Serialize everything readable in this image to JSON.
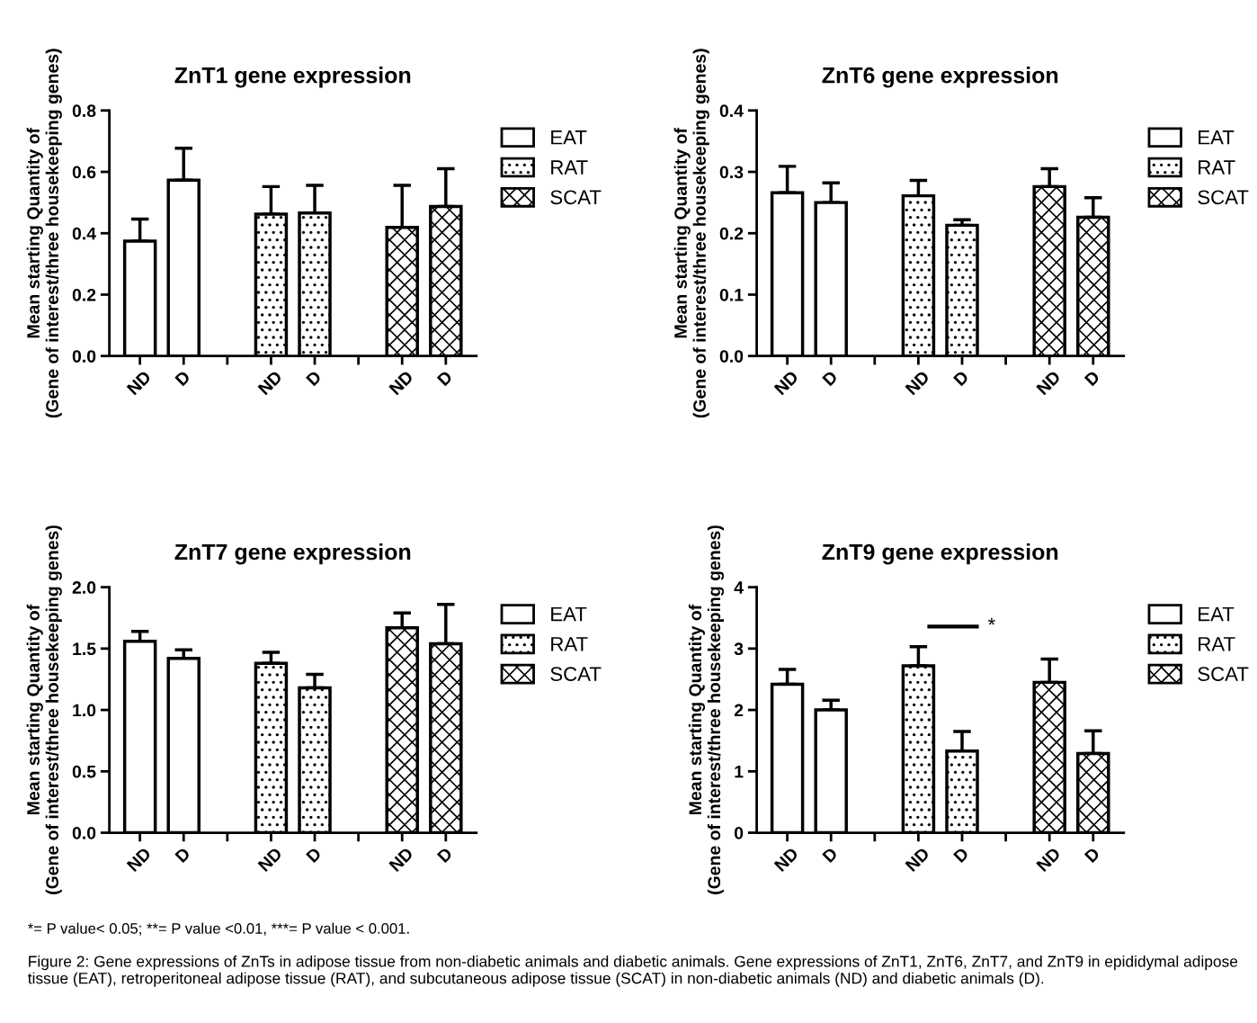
{
  "chart_data": [
    {
      "type": "bar",
      "title": "ZnT1 gene expression",
      "ylabel": "Mean starting Quantity of\n(Gene of interest/three housekeeping genes)",
      "categories": [
        "ND",
        "D",
        null,
        "ND",
        "D",
        null,
        "ND",
        "D"
      ],
      "ylim": [
        0,
        0.8
      ],
      "yticks": [
        {
          "value": 0,
          "label": "0.0"
        },
        0.2,
        0.4,
        0.6,
        0.8
      ],
      "legend": "top right",
      "series": [
        {
          "name": "EAT",
          "color": "#ffffff",
          "values": [
            0.374,
            0.573,
            null,
            null,
            null,
            null,
            null,
            null
          ],
          "errors": [
            [
              0.374,
              0.446
            ],
            [
              0.573,
              0.677
            ],
            null,
            null,
            null,
            null,
            null,
            null
          ]
        },
        {
          "name": "RAT",
          "color": "#000000",
          "values": [
            null,
            null,
            null,
            0.462,
            0.466,
            null,
            null,
            null
          ],
          "errors": [
            null,
            null,
            null,
            [
              0.462,
              0.552
            ],
            [
              0.466,
              0.556
            ],
            null,
            null,
            null
          ]
        },
        {
          "name": "SCAT",
          "color": "#000000",
          "values": [
            null,
            null,
            null,
            null,
            null,
            null,
            0.419,
            0.487
          ],
          "errors": [
            null,
            null,
            null,
            null,
            null,
            null,
            [
              0.419,
              0.556
            ],
            [
              0.487,
              0.61
            ]
          ]
        }
      ]
    },
    {
      "type": "bar",
      "title": "ZnT6 gene expression",
      "ylabel": "Mean starting Quantity of\n(Gene of interest/three housekeeping genes)",
      "categories": [
        "ND",
        "D",
        null,
        "ND",
        "D",
        null,
        "ND",
        "D"
      ],
      "ylim": [
        0,
        0.4
      ],
      "yticks": [
        {
          "value": 0,
          "label": "0.0"
        },
        0.1,
        0.2,
        0.3,
        0.4
      ],
      "legend": "top right",
      "series": [
        {
          "name": "EAT",
          "color": "#ffffff",
          "values": [
            0.266,
            0.25,
            null,
            null,
            null,
            null,
            null,
            null
          ],
          "errors": [
            [
              0.266,
              0.309
            ],
            [
              0.25,
              0.282
            ],
            null,
            null,
            null,
            null,
            null,
            null
          ]
        },
        {
          "name": "RAT",
          "color": "#000000",
          "values": [
            null,
            null,
            null,
            0.261,
            0.213,
            null,
            null,
            null
          ],
          "errors": [
            null,
            null,
            null,
            [
              0.261,
              0.286
            ],
            [
              0.213,
              0.222
            ],
            null,
            null,
            null
          ]
        },
        {
          "name": "SCAT",
          "color": "#000000",
          "values": [
            null,
            null,
            null,
            null,
            null,
            null,
            0.276,
            0.226
          ],
          "errors": [
            null,
            null,
            null,
            null,
            null,
            null,
            [
              0.276,
              0.305
            ],
            [
              0.226,
              0.258
            ]
          ]
        }
      ]
    },
    {
      "type": "bar",
      "title": "ZnT7 gene expression",
      "ylabel": "Mean starting Quantity of\n(Gene of interest/three housekeeping genes)",
      "categories": [
        "ND",
        "D",
        null,
        "ND",
        "D",
        null,
        "ND",
        "D"
      ],
      "ylim": [
        0,
        2
      ],
      "yticks": [
        {
          "value": 0,
          "label": "0.0"
        },
        0.5,
        {
          "value": 1,
          "label": "1.0"
        },
        1.5,
        {
          "value": 2,
          "label": "2.0"
        }
      ],
      "legend": "top right",
      "series": [
        {
          "name": "EAT",
          "color": "#ffffff",
          "values": [
            1.56,
            1.42,
            null,
            null,
            null,
            null,
            null,
            null
          ],
          "errors": [
            [
              1.56,
              1.64
            ],
            [
              1.42,
              1.49
            ],
            null,
            null,
            null,
            null,
            null,
            null
          ]
        },
        {
          "name": "RAT",
          "color": "#000000",
          "values": [
            null,
            null,
            null,
            1.38,
            1.18,
            null,
            null,
            null
          ],
          "errors": [
            null,
            null,
            null,
            [
              1.38,
              1.47
            ],
            [
              1.18,
              1.29
            ],
            null,
            null,
            null
          ]
        },
        {
          "name": "SCAT",
          "color": "#000000",
          "values": [
            null,
            null,
            null,
            null,
            null,
            null,
            1.67,
            1.54
          ],
          "errors": [
            null,
            null,
            null,
            null,
            null,
            null,
            [
              1.67,
              1.79
            ],
            [
              1.54,
              1.86
            ]
          ]
        }
      ]
    },
    {
      "type": "bar",
      "title": "ZnT9 gene expression",
      "ylabel": "Mean starting Quantity of\n(Gene of interest/three housekeeping genes)",
      "categories": [
        "ND",
        "D",
        null,
        "ND",
        "D",
        null,
        "ND",
        "D"
      ],
      "ylim": [
        0,
        4
      ],
      "yticks": [
        0,
        1,
        2,
        3,
        4
      ],
      "legend": "top right",
      "annotations": [
        "*"
      ],
      "series": [
        {
          "name": "EAT",
          "color": "#ffffff",
          "values": [
            2.42,
            2.0,
            null,
            null,
            null,
            null,
            null,
            null
          ],
          "errors": [
            [
              2.42,
              2.66
            ],
            [
              2.0,
              2.16
            ],
            null,
            null,
            null,
            null,
            null,
            null
          ]
        },
        {
          "name": "RAT",
          "color": "#000000",
          "values": [
            null,
            null,
            null,
            2.72,
            1.33,
            null,
            null,
            null
          ],
          "errors": [
            null,
            null,
            null,
            [
              2.72,
              3.03
            ],
            [
              1.33,
              1.65
            ],
            null,
            null,
            null
          ]
        },
        {
          "name": "SCAT",
          "color": "#000000",
          "values": [
            null,
            null,
            null,
            null,
            null,
            null,
            2.45,
            1.29
          ],
          "errors": [
            null,
            null,
            null,
            null,
            null,
            null,
            [
              2.45,
              2.83
            ],
            [
              1.29,
              1.66
            ]
          ]
        }
      ]
    },
    {
      "type": "other",
      "annotations": [
        "*= P value< 0.05; **= P value <0.01, ***= P value < 0.001.",
        "Figure 2: Gene expressions of ZnTs in adipose tissue from non-diabetic animals and diabetic animals. Gene expressions of ZnT1, ZnT6, ZnT7, and ZnT9 in epididymal adipose tissue (EAT), retroperitoneal adipose tissue (RAT), and subcutaneous adipose tissue (SCAT) in non-diabetic animals (ND) and diabetic animals (D)."
      ]
    }
  ]
}
